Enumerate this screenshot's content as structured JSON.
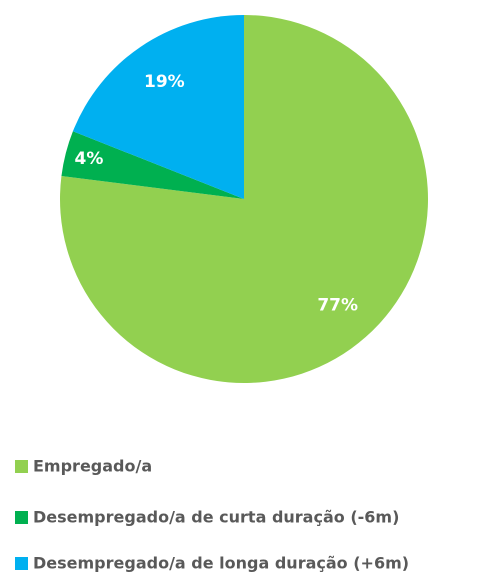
{
  "chart_data": {
    "type": "pie",
    "categories": [
      "Empregado/a",
      "Desempregado/a de curta duração (-6m)",
      "Desempregado/a de longa duração (+6m)"
    ],
    "values": [
      77,
      4,
      19
    ],
    "value_labels": [
      "77%",
      "4%",
      "19%"
    ],
    "colors": [
      "#92d050",
      "#00b050",
      "#00b0f0"
    ]
  }
}
